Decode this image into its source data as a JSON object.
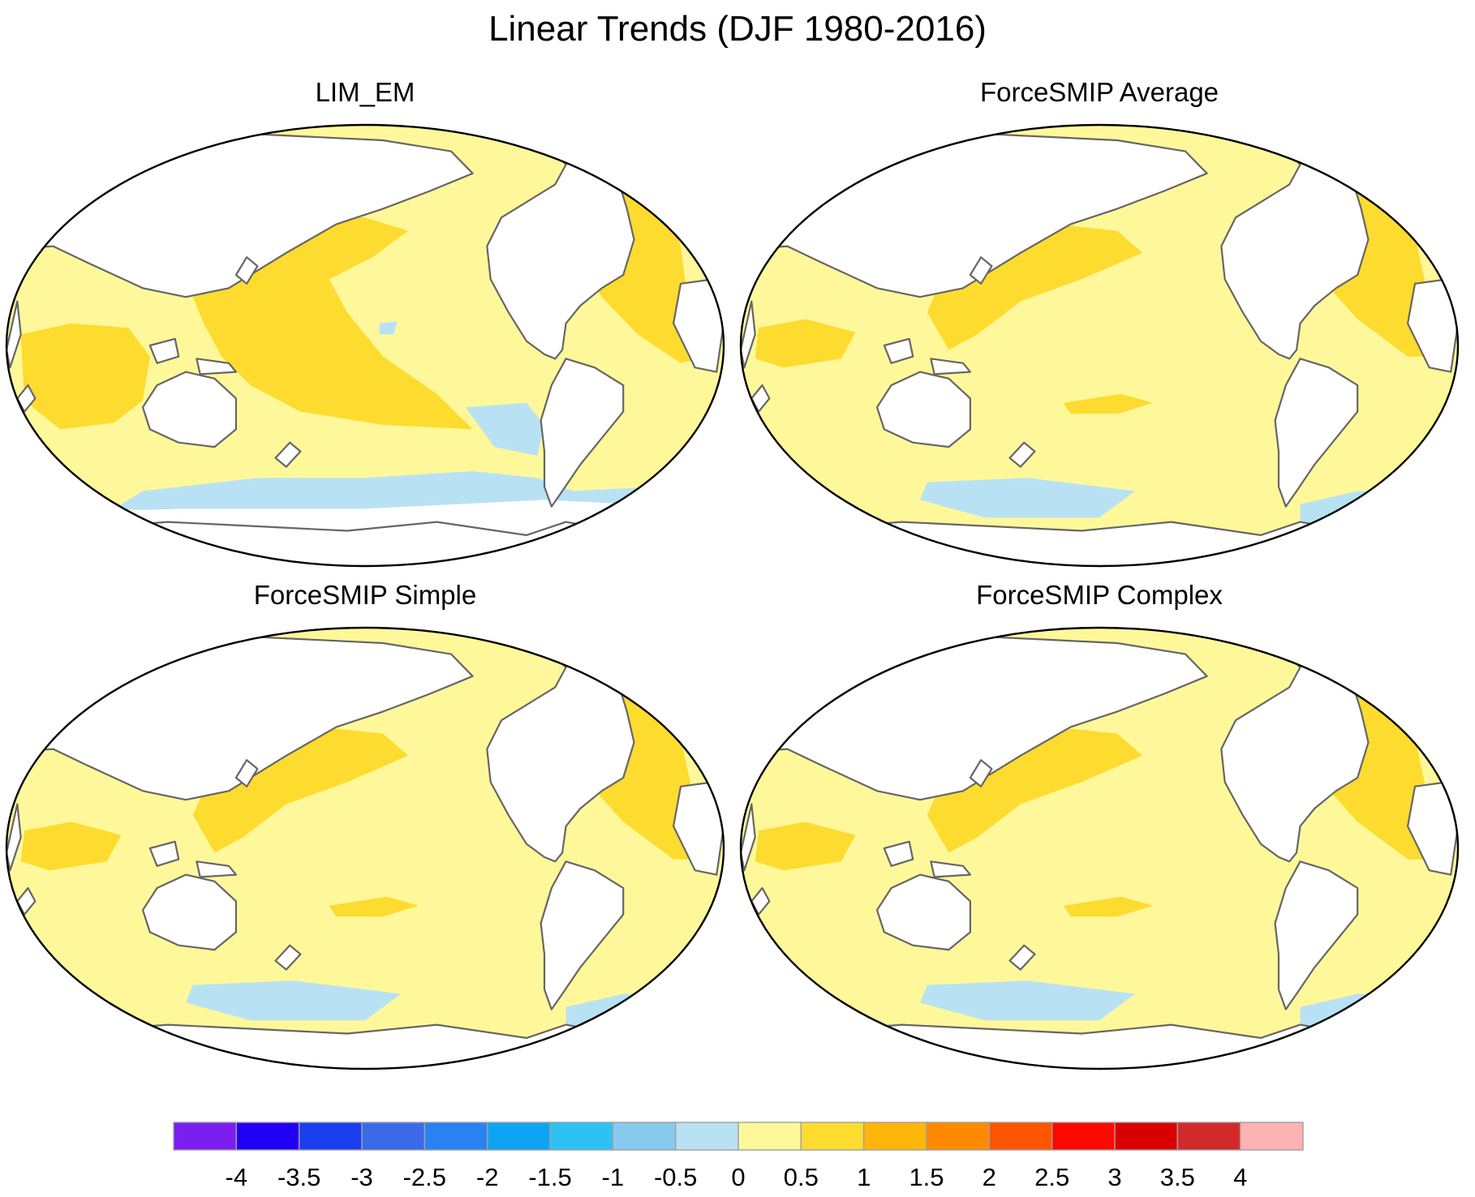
{
  "title": "Linear Trends (DJF 1980-2016)",
  "panels": [
    {
      "title": "LIM_EM",
      "pattern": "lim"
    },
    {
      "title": "ForceSMIP Average",
      "pattern": "forced"
    },
    {
      "title": "ForceSMIP Simple",
      "pattern": "forced"
    },
    {
      "title": "ForceSMIP Complex",
      "pattern": "forced"
    }
  ],
  "colorbar": {
    "labels": [
      "-4",
      "-3.5",
      "-3",
      "-2.5",
      "-2",
      "-1.5",
      "-1",
      "-0.5",
      "0",
      "0.5",
      "1",
      "1.5",
      "2",
      "2.5",
      "3",
      "3.5",
      "4"
    ],
    "colors": [
      "#7a1ff0",
      "#2200f5",
      "#1a3ef0",
      "#3a6ae8",
      "#2a82f2",
      "#0ea4f4",
      "#2ec2f4",
      "#88caee",
      "#b8e2f4",
      "#fff89a",
      "#fddb2f",
      "#ffb60a",
      "#ff8a00",
      "#ff5500",
      "#ff0800",
      "#db0000",
      "#d22a2a",
      "#ffb2b2"
    ]
  }
}
